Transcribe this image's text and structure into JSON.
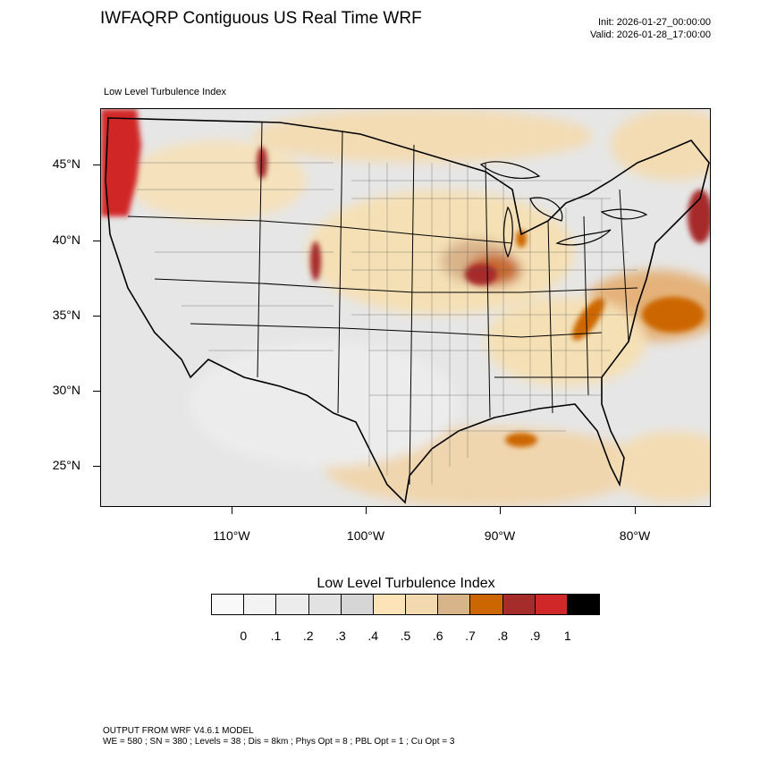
{
  "header": {
    "title": "IWFAQRP Contiguous US Real Time WRF",
    "init": "Init: 2026-01-27_00:00:00",
    "valid": "Valid: 2026-01-28_17:00:00"
  },
  "map": {
    "field_label": "Low Level Turbulence Index",
    "latitude_labels": [
      "45°N",
      "40°N",
      "35°N",
      "30°N",
      "25°N"
    ],
    "longitude_labels": [
      "110°W",
      "100°W",
      "90°W",
      "80°W"
    ],
    "extent": {
      "lon": [
        -119.9,
        -74.4
      ],
      "lat": [
        22.1,
        48.8
      ]
    },
    "grid_lines": false
  },
  "legend": {
    "title": "Low Level Turbulence Index",
    "tick_labels": [
      "0",
      ".1",
      ".2",
      ".3",
      ".4",
      ".5",
      ".6",
      ".7",
      ".8",
      ".9",
      "1"
    ],
    "colors": [
      "#f9f9f9",
      "#f3f3f3",
      "#ececec",
      "#e2e2e2",
      "#d6d6d6",
      "#fde4b8",
      "#f2d9b0",
      "#d8b48a",
      "#cc6600",
      "#a62b2b",
      "#d02828",
      "#000000"
    ]
  },
  "footer": {
    "model": "OUTPUT FROM WRF V4.6.1 MODEL",
    "settings": "WE = 580 ; SN = 380 ; Levels = 38 ; Dis = 8km ; Phys Opt = 8 ; PBL Opt = 1 ; Cu Opt = 3"
  }
}
